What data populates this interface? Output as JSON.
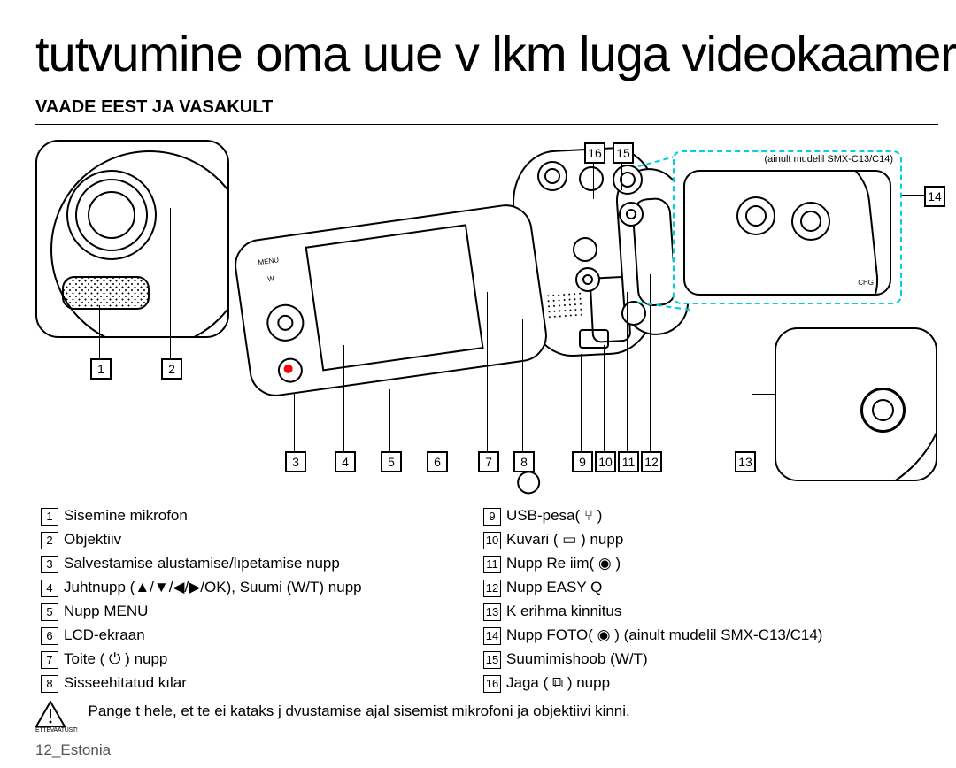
{
  "title": "tutvumine oma uue v lkm luga videokaamerag",
  "subtitle": "VAADE EEST JA VASAKULT",
  "detail_note": "(ainult mudelil SMX-C13/C14)",
  "callouts": {
    "c1": "1",
    "c2": "2",
    "c3": "3",
    "c4": "4",
    "c5": "5",
    "c6": "6",
    "c7": "7",
    "c8": "8",
    "c9": "9",
    "c10": "10",
    "c11": "11",
    "c12": "12",
    "c13": "13",
    "c14": "14",
    "c15": "15",
    "c16": "16"
  },
  "components_left": [
    {
      "n": "1",
      "t": "Sisemine mikrofon"
    },
    {
      "n": "2",
      "t": "Objektiiv"
    },
    {
      "n": "3",
      "t": "Salvestamise alustamise/lıpetamise nupp"
    },
    {
      "n": "4",
      "t": "Juhtnupp (▲/▼/◀/▶/OK), Suumi (W/T) nupp"
    },
    {
      "n": "5",
      "t": "Nupp MENU"
    },
    {
      "n": "6",
      "t": "LCD-ekraan"
    },
    {
      "n": "7",
      "t": "Toite ( ⏻ ) nupp"
    },
    {
      "n": "8",
      "t": "Sisseehitatud kılar"
    }
  ],
  "components_right": [
    {
      "n": "9",
      "t": "USB-pesa( ⑂ )"
    },
    {
      "n": "10",
      "t": "Kuvari ( ▭ ) nupp"
    },
    {
      "n": "11",
      "t": "Nupp Re iim( ◉ )"
    },
    {
      "n": "12",
      "t": "Nupp EASY Q"
    },
    {
      "n": "13",
      "t": "K erihma kinnitus"
    },
    {
      "n": "14",
      "t": "Nupp FOTO( ◉ ) (ainult mudelil SMX-C13/C14)"
    },
    {
      "n": "15",
      "t": "Suumimishoob (W/T)"
    },
    {
      "n": "16",
      "t": "Jaga ( ⧉ ) nupp"
    }
  ],
  "caution_label": "ETTEVAATUST!",
  "caution_text": "Pange t hele, et te ei kataks j dvustamise ajal sisemist mikrofoni ja objektiivi kinni.",
  "footer": "12_Estonia"
}
